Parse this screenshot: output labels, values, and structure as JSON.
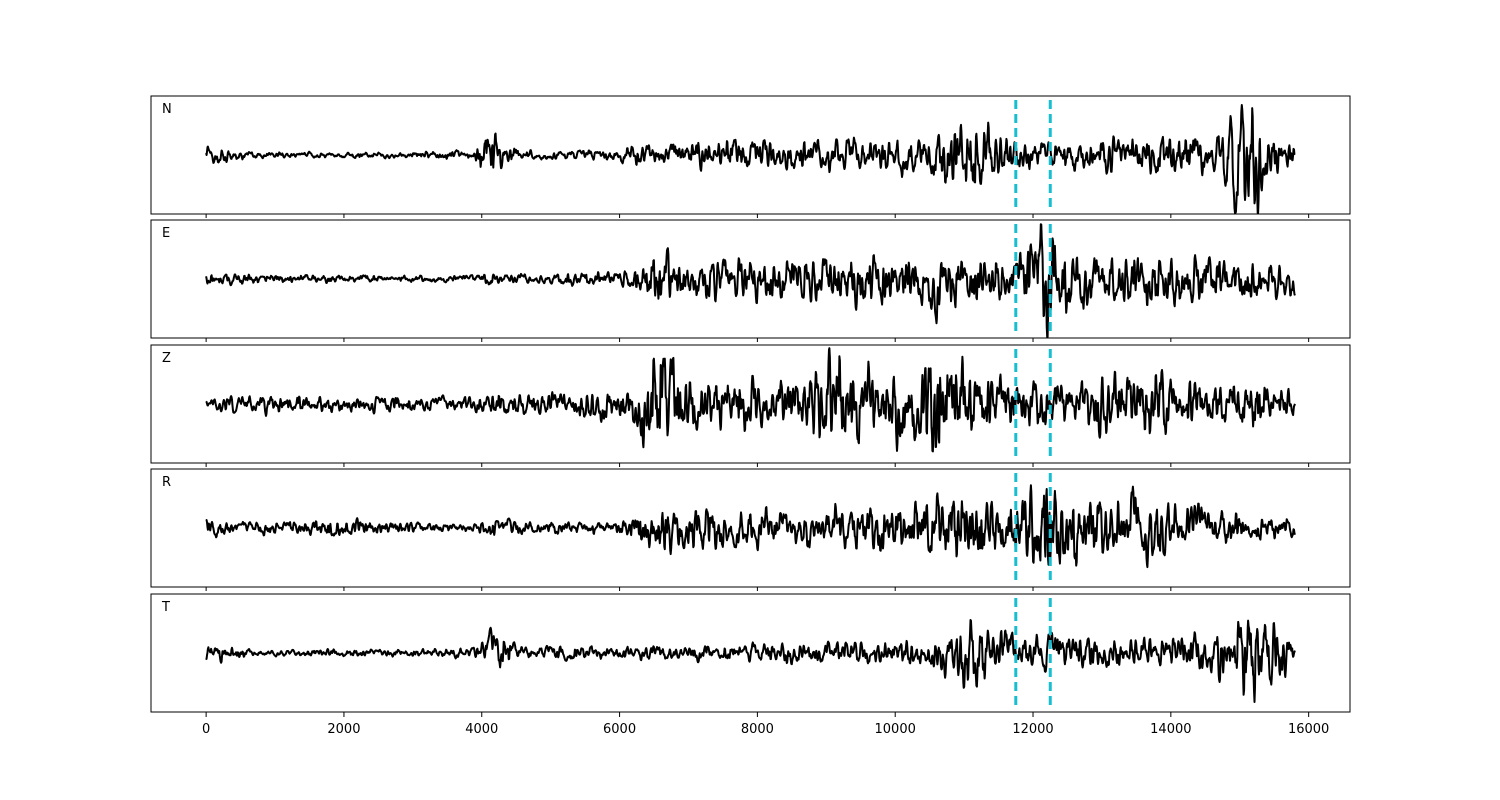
{
  "chart_data": {
    "type": "line",
    "title": "",
    "xlabel": "",
    "ylabel": "",
    "xlim": [
      -800,
      16600
    ],
    "xticks": [
      0,
      2000,
      4000,
      6000,
      8000,
      10000,
      12000,
      14000,
      16000
    ],
    "xtick_labels": [
      "0",
      "2000",
      "4000",
      "6000",
      "8000",
      "10000",
      "12000",
      "14000",
      "16000"
    ],
    "x_range": [
      0,
      15800
    ],
    "picks": [
      11750,
      12250
    ],
    "line_color": "#000000",
    "pick_color": "#17becf",
    "grid": false,
    "panels": [
      {
        "label": "N",
        "envelope": [
          [
            0,
            0.14
          ],
          [
            500,
            0.08
          ],
          [
            700,
            0.04
          ],
          [
            3000,
            0.04
          ],
          [
            3600,
            0.08
          ],
          [
            3900,
            0.05
          ],
          [
            4000,
            0.3
          ],
          [
            4150,
            0.5
          ],
          [
            4300,
            0.2
          ],
          [
            4600,
            0.06
          ],
          [
            6000,
            0.08
          ],
          [
            6200,
            0.14
          ],
          [
            7000,
            0.22
          ],
          [
            9500,
            0.24
          ],
          [
            10500,
            0.28
          ],
          [
            10800,
            0.5
          ],
          [
            11100,
            0.62
          ],
          [
            11500,
            0.32
          ],
          [
            11800,
            0.22
          ],
          [
            12200,
            0.18
          ],
          [
            13000,
            0.24
          ],
          [
            14000,
            0.28
          ],
          [
            14600,
            0.3
          ],
          [
            14850,
            0.58
          ],
          [
            15050,
            0.85
          ],
          [
            15200,
            0.95
          ],
          [
            15400,
            0.3
          ],
          [
            15800,
            0.24
          ]
        ]
      },
      {
        "label": "E",
        "envelope": [
          [
            0,
            0.1
          ],
          [
            500,
            0.07
          ],
          [
            3000,
            0.05
          ],
          [
            3900,
            0.05
          ],
          [
            4100,
            0.16
          ],
          [
            4400,
            0.08
          ],
          [
            5000,
            0.06
          ],
          [
            5300,
            0.12
          ],
          [
            6000,
            0.1
          ],
          [
            6300,
            0.3
          ],
          [
            6600,
            0.42
          ],
          [
            7000,
            0.32
          ],
          [
            8000,
            0.34
          ],
          [
            9000,
            0.38
          ],
          [
            10300,
            0.42
          ],
          [
            10600,
            0.5
          ],
          [
            11000,
            0.42
          ],
          [
            11700,
            0.32
          ],
          [
            12000,
            0.7
          ],
          [
            12200,
            0.95
          ],
          [
            12400,
            0.55
          ],
          [
            13000,
            0.36
          ],
          [
            13500,
            0.45
          ],
          [
            14000,
            0.4
          ],
          [
            15000,
            0.3
          ],
          [
            15800,
            0.28
          ]
        ]
      },
      {
        "label": "Z",
        "envelope": [
          [
            0,
            0.06
          ],
          [
            300,
            0.12
          ],
          [
            600,
            0.1
          ],
          [
            900,
            0.14
          ],
          [
            1500,
            0.12
          ],
          [
            3000,
            0.1
          ],
          [
            3800,
            0.1
          ],
          [
            4100,
            0.14
          ],
          [
            4600,
            0.14
          ],
          [
            5000,
            0.16
          ],
          [
            5500,
            0.22
          ],
          [
            6200,
            0.3
          ],
          [
            6400,
            0.75
          ],
          [
            6600,
            0.95
          ],
          [
            6900,
            0.55
          ],
          [
            7200,
            0.32
          ],
          [
            8000,
            0.42
          ],
          [
            8600,
            0.34
          ],
          [
            9100,
            0.72
          ],
          [
            9300,
            0.62
          ],
          [
            9700,
            0.55
          ],
          [
            10200,
            0.56
          ],
          [
            10600,
            0.98
          ],
          [
            11100,
            0.5
          ],
          [
            11600,
            0.36
          ],
          [
            12000,
            0.32
          ],
          [
            12600,
            0.34
          ],
          [
            13300,
            0.46
          ],
          [
            13800,
            0.52
          ],
          [
            14500,
            0.24
          ],
          [
            15000,
            0.3
          ],
          [
            15200,
            0.46
          ],
          [
            15500,
            0.26
          ],
          [
            15800,
            0.2
          ]
        ]
      },
      {
        "label": "R",
        "envelope": [
          [
            0,
            0.14
          ],
          [
            500,
            0.08
          ],
          [
            1000,
            0.1
          ],
          [
            1400,
            0.14
          ],
          [
            3000,
            0.08
          ],
          [
            3900,
            0.06
          ],
          [
            4150,
            0.18
          ],
          [
            4500,
            0.1
          ],
          [
            6000,
            0.1
          ],
          [
            6300,
            0.3
          ],
          [
            6600,
            0.5
          ],
          [
            7000,
            0.34
          ],
          [
            8000,
            0.3
          ],
          [
            9500,
            0.36
          ],
          [
            10300,
            0.42
          ],
          [
            10600,
            0.52
          ],
          [
            11100,
            0.6
          ],
          [
            11600,
            0.34
          ],
          [
            12000,
            0.66
          ],
          [
            12200,
            0.95
          ],
          [
            12450,
            0.7
          ],
          [
            13000,
            0.42
          ],
          [
            13600,
            0.58
          ],
          [
            14000,
            0.38
          ],
          [
            15000,
            0.22
          ],
          [
            15500,
            0.18
          ],
          [
            15800,
            0.16
          ]
        ]
      },
      {
        "label": "T",
        "envelope": [
          [
            0,
            0.14
          ],
          [
            500,
            0.08
          ],
          [
            700,
            0.04
          ],
          [
            3000,
            0.06
          ],
          [
            3900,
            0.08
          ],
          [
            4100,
            0.28
          ],
          [
            4250,
            0.3
          ],
          [
            4500,
            0.1
          ],
          [
            6000,
            0.1
          ],
          [
            8000,
            0.14
          ],
          [
            9500,
            0.18
          ],
          [
            10500,
            0.22
          ],
          [
            10900,
            0.46
          ],
          [
            11100,
            0.58
          ],
          [
            11400,
            0.4
          ],
          [
            11800,
            0.26
          ],
          [
            12300,
            0.3
          ],
          [
            13000,
            0.22
          ],
          [
            14500,
            0.32
          ],
          [
            14900,
            0.52
          ],
          [
            15100,
            0.95
          ],
          [
            15300,
            0.7
          ],
          [
            15500,
            0.52
          ],
          [
            15800,
            0.26
          ]
        ]
      }
    ]
  }
}
